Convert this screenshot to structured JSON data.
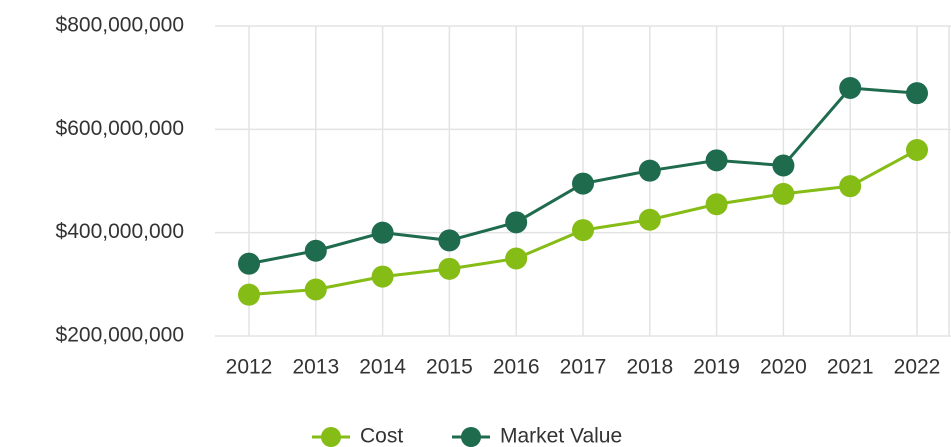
{
  "chart_data": {
    "type": "line",
    "categories": [
      "2012",
      "2013",
      "2014",
      "2015",
      "2016",
      "2017",
      "2018",
      "2019",
      "2020",
      "2021",
      "2022"
    ],
    "series": [
      {
        "name": "Cost",
        "color": "#86bc16",
        "values": [
          280000000,
          290000000,
          315000000,
          330000000,
          350000000,
          405000000,
          425000000,
          455000000,
          475000000,
          490000000,
          560000000
        ]
      },
      {
        "name": "Market Value",
        "color": "#1f6b4e",
        "values": [
          340000000,
          365000000,
          400000000,
          385000000,
          420000000,
          495000000,
          520000000,
          540000000,
          530000000,
          680000000,
          670000000
        ]
      }
    ],
    "ylim": [
      200000000,
      800000000
    ],
    "yticks": [
      {
        "value": 200000000,
        "label": "$200,000,000"
      },
      {
        "value": 400000000,
        "label": "$400,000,000"
      },
      {
        "value": 600000000,
        "label": "$600,000,000"
      },
      {
        "value": 800000000,
        "label": "$800,000,000"
      }
    ],
    "grid": true,
    "legend": "bottom"
  }
}
